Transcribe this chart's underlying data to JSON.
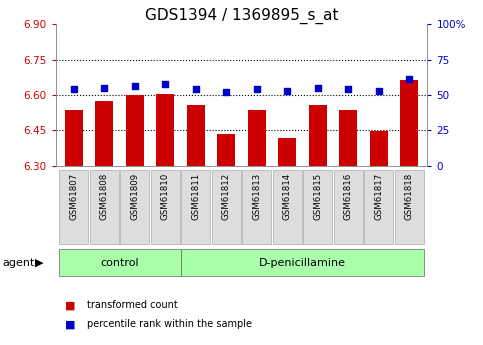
{
  "title": "GDS1394 / 1369895_s_at",
  "categories": [
    "GSM61807",
    "GSM61808",
    "GSM61809",
    "GSM61810",
    "GSM61811",
    "GSM61812",
    "GSM61813",
    "GSM61814",
    "GSM61815",
    "GSM61816",
    "GSM61817",
    "GSM61818"
  ],
  "bar_values": [
    6.535,
    6.575,
    6.6,
    6.605,
    6.555,
    6.435,
    6.535,
    6.415,
    6.555,
    6.535,
    6.445,
    6.665
  ],
  "dot_values": [
    54,
    55,
    56,
    58,
    54,
    52,
    54,
    53,
    55,
    54,
    53,
    61
  ],
  "bar_bottom": 6.3,
  "ylim_left": [
    6.3,
    6.9
  ],
  "ylim_right": [
    0,
    100
  ],
  "yticks_left": [
    6.3,
    6.45,
    6.6,
    6.75,
    6.9
  ],
  "yticks_right": [
    0,
    25,
    50,
    75,
    100
  ],
  "hlines": [
    6.45,
    6.6,
    6.75
  ],
  "bar_color": "#cc0000",
  "dot_color": "#0000cc",
  "bar_width": 0.6,
  "groups": [
    {
      "label": "control",
      "start": 0,
      "end": 4,
      "color": "#aaffaa"
    },
    {
      "label": "D-penicillamine",
      "start": 4,
      "end": 12,
      "color": "#aaffaa"
    }
  ],
  "agent_label": "agent",
  "legend_items": [
    {
      "label": "transformed count",
      "color": "#cc0000"
    },
    {
      "label": "percentile rank within the sample",
      "color": "#0000cc"
    }
  ],
  "background_color": "#ffffff",
  "plot_bg_color": "#ffffff",
  "tick_label_color_left": "#cc0000",
  "tick_label_color_right": "#0000cc",
  "title_fontsize": 11,
  "tick_fontsize": 7.5
}
